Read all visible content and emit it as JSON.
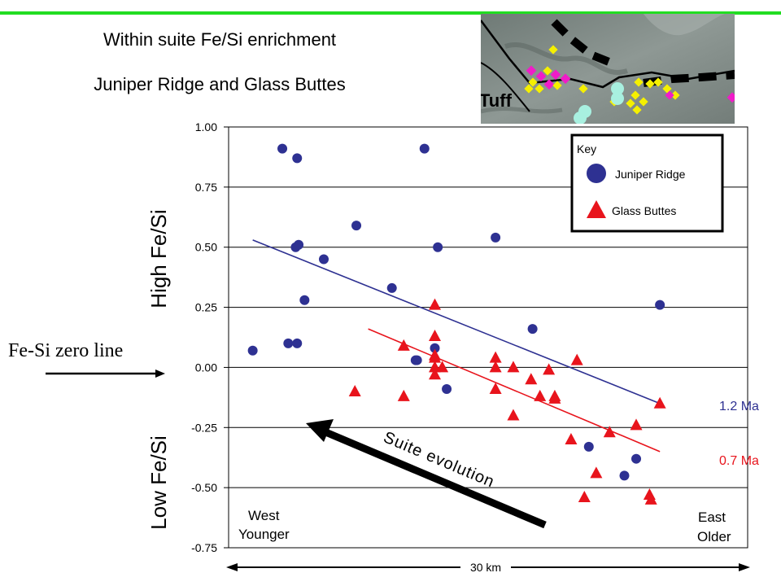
{
  "title_line1": "Within suite Fe/Si enrichment",
  "title_line2": "Juniper Ridge and Glass Buttes",
  "map_label": "Tuff",
  "zero_line_label": "Fe-Si zero line",
  "colors": {
    "juniper": "#2e3192",
    "glass": "#e8141c",
    "accent_bar": "#22dd22",
    "map_bg": "#7f8a86",
    "map_yellow": "#f5f000",
    "map_magenta": "#f01cc8",
    "map_cyan": "#a8f0e0"
  },
  "annotations": {
    "high": "High Fe/Si",
    "low": "Low Fe/Si",
    "west": [
      "West",
      "Younger"
    ],
    "east": [
      "East",
      "Older"
    ],
    "distance": "30 km",
    "arrow": "Suite evolution",
    "age_juniper": "1.2 Ma",
    "age_glass": "0.7 Ma"
  },
  "legend": {
    "title": "Key",
    "juniper": "Juniper Ridge",
    "glass": "Glass Buttes"
  },
  "chart_data": {
    "type": "scatter",
    "ylim": [
      -0.75,
      1.0
    ],
    "xlim": [
      0,
      30
    ],
    "yticks": [
      "1.00",
      "0.75",
      "0.50",
      "0.25",
      "0.00",
      "-0.25",
      "-0.50",
      "-0.75"
    ],
    "grid": true,
    "legend_position": "top-right",
    "series": [
      {
        "name": "Juniper Ridge",
        "marker": "circle",
        "points": [
          [
            0.2,
            0.07
          ],
          [
            2.2,
            0.91
          ],
          [
            2.6,
            0.1
          ],
          [
            3.2,
            0.87
          ],
          [
            3.1,
            0.5
          ],
          [
            3.3,
            0.51
          ],
          [
            3.2,
            0.1
          ],
          [
            3.7,
            0.28
          ],
          [
            5.0,
            0.45
          ],
          [
            7.2,
            0.59
          ],
          [
            9.6,
            0.33
          ],
          [
            11.2,
            0.03
          ],
          [
            11.3,
            0.03
          ],
          [
            11.8,
            0.91
          ],
          [
            12.7,
            0.5
          ],
          [
            12.5,
            0.08
          ],
          [
            13.3,
            -0.09
          ],
          [
            16.6,
            0.54
          ],
          [
            19.1,
            0.16
          ],
          [
            22.9,
            -0.33
          ],
          [
            26.1,
            -0.38
          ],
          [
            27.7,
            0.26
          ],
          [
            25.3,
            -0.45
          ]
        ],
        "trend": [
          [
            0.2,
            0.53
          ],
          [
            27.7,
            -0.15
          ]
        ]
      },
      {
        "name": "Glass Buttes",
        "marker": "triangle",
        "points": [
          [
            7.1,
            -0.1
          ],
          [
            10.4,
            -0.12
          ],
          [
            10.4,
            0.09
          ],
          [
            12.5,
            0.26
          ],
          [
            12.5,
            0.13
          ],
          [
            12.5,
            0.05
          ],
          [
            12.5,
            0.04
          ],
          [
            12.5,
            0.0
          ],
          [
            12.5,
            -0.03
          ],
          [
            13.0,
            0.0
          ],
          [
            16.6,
            0.04
          ],
          [
            16.6,
            0.0
          ],
          [
            16.6,
            -0.09
          ],
          [
            17.8,
            0.0
          ],
          [
            17.8,
            -0.2
          ],
          [
            19.0,
            -0.05
          ],
          [
            19.6,
            -0.12
          ],
          [
            20.2,
            -0.01
          ],
          [
            20.6,
            -0.12
          ],
          [
            20.6,
            -0.13
          ],
          [
            21.7,
            -0.3
          ],
          [
            22.1,
            0.03
          ],
          [
            22.6,
            -0.54
          ],
          [
            23.4,
            -0.44
          ],
          [
            24.3,
            -0.27
          ],
          [
            26.1,
            -0.24
          ],
          [
            27.0,
            -0.53
          ],
          [
            27.1,
            -0.55
          ],
          [
            27.7,
            -0.15
          ]
        ],
        "trend": [
          [
            8.0,
            0.16
          ],
          [
            27.7,
            -0.35
          ]
        ]
      }
    ]
  }
}
